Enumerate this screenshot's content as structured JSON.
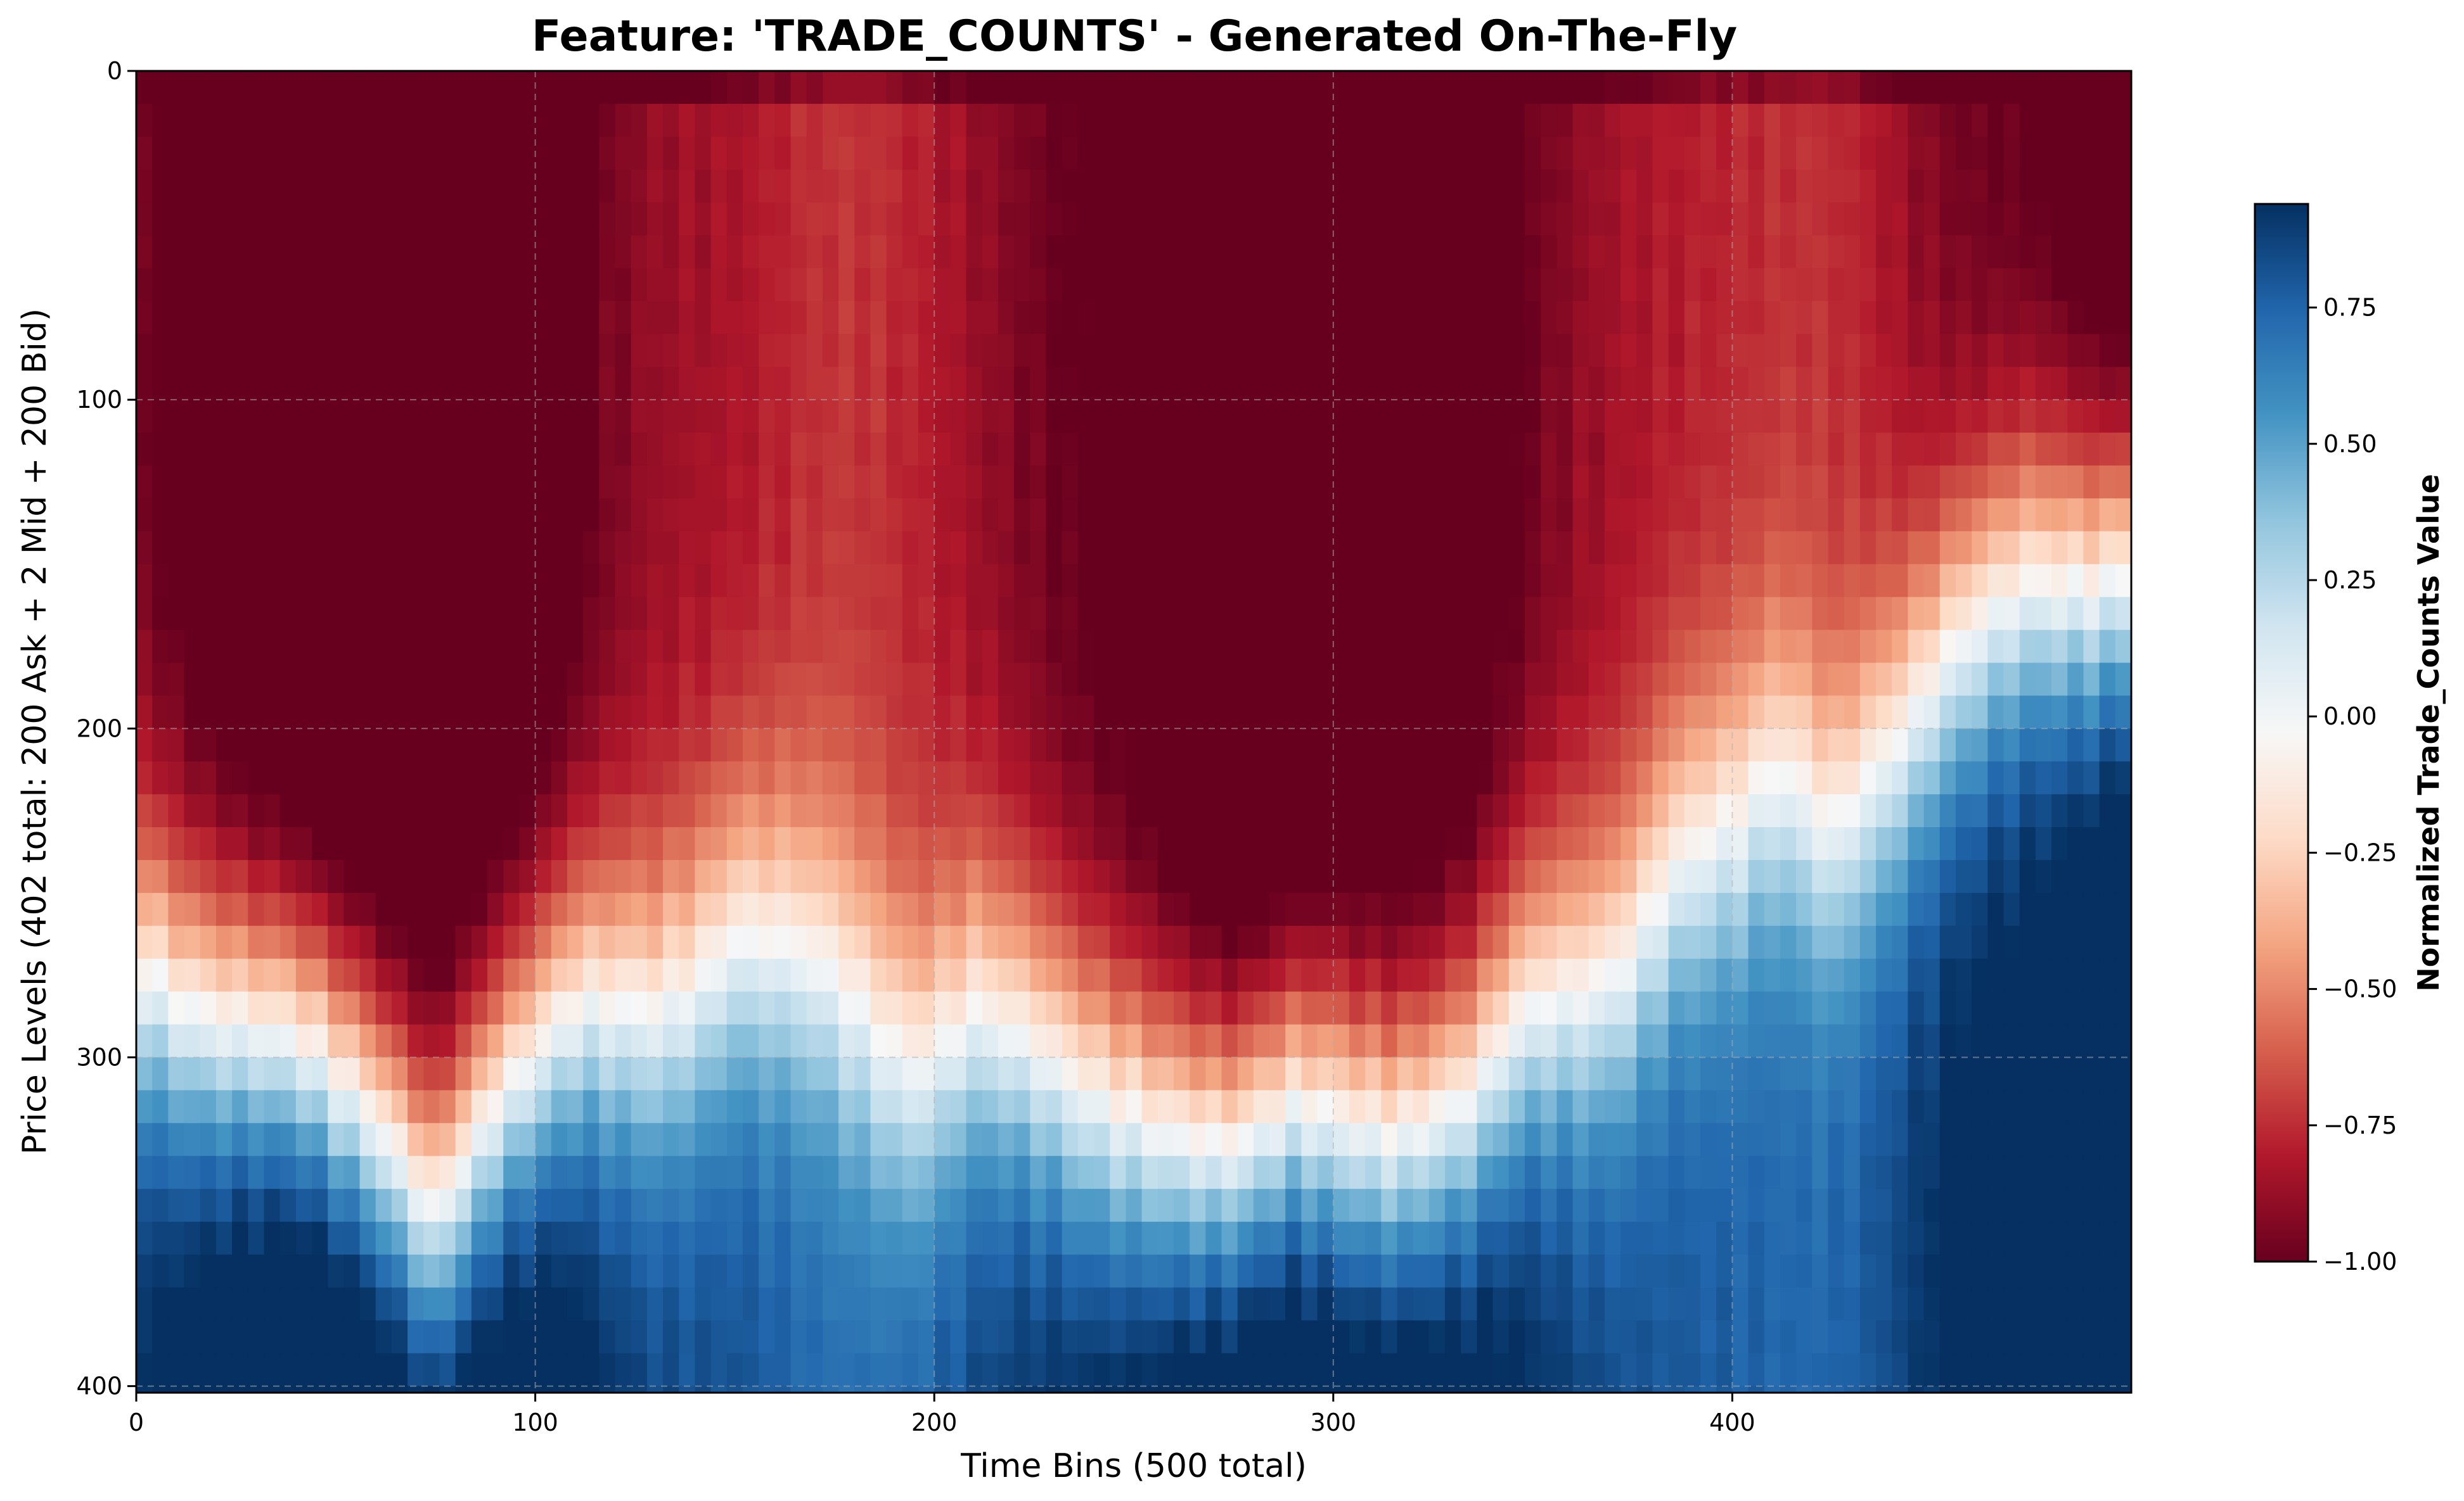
{
  "chart_data": {
    "type": "heatmap",
    "title": "Feature: 'TRADE_COUNTS' - Generated On-The-Fly",
    "xlabel": "Time Bins (500 total)",
    "ylabel": "Price Levels (402 total: 200 Ask + 2 Mid + 200 Bid)",
    "xlim": [
      0,
      500
    ],
    "ylim": [
      402,
      0
    ],
    "n_cols": 500,
    "n_rows": 402,
    "x_ticks": [
      0,
      100,
      200,
      300,
      400
    ],
    "y_ticks": [
      0,
      100,
      200,
      300,
      400
    ],
    "grid": true,
    "colormap": "RdBu",
    "colorbar": {
      "label": "Normalized Trade_Counts Value",
      "vmin": -1.0,
      "vmax": 0.94,
      "ticks": [
        "0.75",
        "0.50",
        "0.25",
        "0.00",
        "−0.25",
        "−0.50",
        "−0.75",
        "−1.00"
      ],
      "tick_values": [
        0.75,
        0.5,
        0.25,
        0.0,
        -0.25,
        -0.5,
        -0.75,
        -1.0
      ],
      "stops": [
        {
          "v": 0.0,
          "color": "#67001f"
        },
        {
          "v": 0.1,
          "color": "#b2182b"
        },
        {
          "v": 0.2,
          "color": "#d6604d"
        },
        {
          "v": 0.3,
          "color": "#f4a582"
        },
        {
          "v": 0.4,
          "color": "#fddbc7"
        },
        {
          "v": 0.5,
          "color": "#f7f7f7"
        },
        {
          "v": 0.6,
          "color": "#d1e5f0"
        },
        {
          "v": 0.7,
          "color": "#92c5de"
        },
        {
          "v": 0.8,
          "color": "#4393c3"
        },
        {
          "v": 0.9,
          "color": "#2166ac"
        },
        {
          "v": 1.0,
          "color": "#053061"
        }
      ]
    },
    "zero_crossing_profile": {
      "description": "price level where value crosses 0 per time bin (approx)",
      "time_bins": [
        0,
        20,
        40,
        60,
        75,
        90,
        110,
        130,
        150,
        175,
        195,
        210,
        235,
        255,
        275,
        290,
        315,
        335,
        350,
        372,
        385,
        400,
        412,
        425,
        440,
        455,
        475,
        500
      ],
      "zero_level": [
        275,
        285,
        300,
        320,
        345,
        315,
        290,
        285,
        265,
        280,
        300,
        290,
        310,
        320,
        330,
        320,
        320,
        315,
        290,
        270,
        245,
        235,
        215,
        230,
        205,
        180,
        160,
        150
      ]
    }
  }
}
